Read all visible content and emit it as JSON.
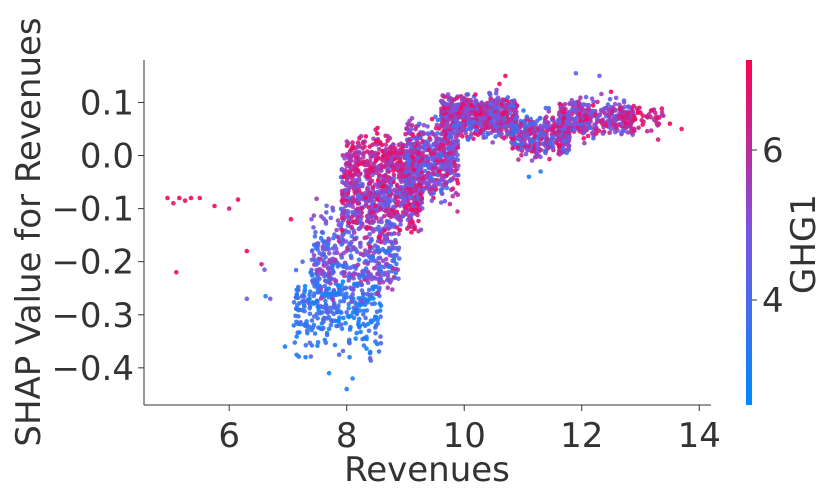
{
  "chart_data": {
    "type": "scatter",
    "title": "",
    "xlabel": "Revenues",
    "ylabel": "SHAP Value for Revenues",
    "xlim": [
      4.55,
      14.2
    ],
    "ylim": [
      -0.47,
      0.18
    ],
    "xticks": [
      {
        "value": 6,
        "label": "6"
      },
      {
        "value": 8,
        "label": "8"
      },
      {
        "value": 10,
        "label": "10"
      },
      {
        "value": 12,
        "label": "12"
      },
      {
        "value": 14,
        "label": "14"
      }
    ],
    "yticks": [
      {
        "value": 0.1,
        "label": "0.1"
      },
      {
        "value": 0.0,
        "label": "0.0"
      },
      {
        "value": -0.1,
        "label": "−0.1"
      },
      {
        "value": -0.2,
        "label": "−0.2"
      },
      {
        "value": -0.3,
        "label": "−0.3"
      },
      {
        "value": -0.4,
        "label": "−0.4"
      }
    ],
    "grid": false,
    "colorbar": {
      "label": "GHG1",
      "range": [
        2.6,
        7.2
      ],
      "ticks": [
        {
          "value": 4,
          "label": "4"
        },
        {
          "value": 6,
          "label": "6"
        }
      ],
      "colors": [
        "#008afb",
        "#7b54e0",
        "#ff0052"
      ]
    },
    "series": [
      {
        "description_note": "",
        "points": [
          {
            "x": 4.95,
            "y": -0.08,
            "c": 7.0
          },
          {
            "x": 5.05,
            "y": -0.09,
            "c": 6.9
          },
          {
            "x": 5.15,
            "y": -0.08,
            "c": 7.1
          },
          {
            "x": 5.25,
            "y": -0.085,
            "c": 6.8
          },
          {
            "x": 5.35,
            "y": -0.08,
            "c": 7.0
          },
          {
            "x": 5.5,
            "y": -0.08,
            "c": 7.1
          },
          {
            "x": 5.75,
            "y": -0.095,
            "c": 6.9
          },
          {
            "x": 5.1,
            "y": -0.22,
            "c": 6.8
          },
          {
            "x": 6.15,
            "y": -0.083,
            "c": 7.0
          },
          {
            "x": 6.0,
            "y": -0.1,
            "c": 6.3
          },
          {
            "x": 6.3,
            "y": -0.18,
            "c": 7.0
          },
          {
            "x": 6.3,
            "y": -0.27,
            "c": 4.6
          },
          {
            "x": 6.55,
            "y": -0.205,
            "c": 6.4
          },
          {
            "x": 6.6,
            "y": -0.215,
            "c": 4.8
          },
          {
            "x": 6.62,
            "y": -0.265,
            "c": 2.9
          },
          {
            "x": 6.7,
            "y": -0.27,
            "c": 5.0
          },
          {
            "x": 7.05,
            "y": -0.12,
            "c": 7.0
          },
          {
            "x": 6.95,
            "y": -0.36,
            "c": 2.9
          },
          {
            "x": 7.1,
            "y": -0.32,
            "c": 3.1
          },
          {
            "x": 7.3,
            "y": -0.38,
            "c": 3.0
          },
          {
            "x": 7.25,
            "y": -0.2,
            "c": 4.2
          },
          {
            "x": 7.4,
            "y": -0.12,
            "c": 4.8
          },
          {
            "x": 7.5,
            "y": -0.24,
            "c": 3.2
          },
          {
            "x": 7.6,
            "y": -0.22,
            "c": 5.2
          },
          {
            "x": 7.7,
            "y": -0.41,
            "c": 2.9
          },
          {
            "x": 7.8,
            "y": -0.17,
            "c": 4.1
          },
          {
            "x": 7.95,
            "y": -0.04,
            "c": 7.1
          },
          {
            "x": 8.0,
            "y": -0.44,
            "c": 3.0
          },
          {
            "x": 8.05,
            "y": -0.38,
            "c": 3.1
          },
          {
            "x": 8.1,
            "y": -0.42,
            "c": 3.0
          },
          {
            "x": 8.4,
            "y": -0.37,
            "c": 3.0
          },
          {
            "x": 8.5,
            "y": -0.01,
            "c": 6.8
          },
          {
            "x": 8.6,
            "y": 0.02,
            "c": 7.0
          },
          {
            "x": 10.6,
            "y": 0.135,
            "c": 7.0
          },
          {
            "x": 10.7,
            "y": 0.15,
            "c": 6.9
          },
          {
            "x": 11.9,
            "y": 0.155,
            "c": 4.2
          },
          {
            "x": 12.3,
            "y": 0.15,
            "c": 4.5
          },
          {
            "x": 12.5,
            "y": 0.12,
            "c": 6.8
          },
          {
            "x": 12.9,
            "y": 0.07,
            "c": 7.0
          },
          {
            "x": 13.2,
            "y": 0.085,
            "c": 6.6
          },
          {
            "x": 13.3,
            "y": 0.03,
            "c": 6.5
          },
          {
            "x": 13.5,
            "y": 0.06,
            "c": 7.0
          },
          {
            "x": 13.7,
            "y": 0.05,
            "c": 6.9
          },
          {
            "x": 11.1,
            "y": -0.04,
            "c": 3.0
          },
          {
            "x": 11.3,
            "y": -0.03,
            "c": 3.1
          }
        ]
      }
    ],
    "clusters": [
      {
        "xMin": 7.1,
        "xMax": 8.6,
        "yLo": -0.4,
        "yHi": -0.18,
        "cLo": 2.6,
        "cHi": 4.4,
        "n": 330
      },
      {
        "xMin": 7.4,
        "xMax": 8.9,
        "yLo": -0.3,
        "yHi": -0.07,
        "cLo": 3.3,
        "cHi": 6.0,
        "n": 380
      },
      {
        "xMin": 7.9,
        "xMax": 9.3,
        "yLo": -0.18,
        "yHi": 0.02,
        "cLo": 4.0,
        "cHi": 7.1,
        "n": 620
      },
      {
        "xMin": 8.0,
        "xMax": 9.3,
        "yLo": -0.07,
        "yHi": 0.06,
        "cLo": 5.3,
        "cHi": 7.1,
        "n": 330
      },
      {
        "xMin": 9.0,
        "xMax": 9.9,
        "yLo": -0.12,
        "yHi": 0.1,
        "cLo": 3.8,
        "cHi": 7.0,
        "n": 520
      },
      {
        "xMin": 9.6,
        "xMax": 10.9,
        "yLo": 0.02,
        "yHi": 0.13,
        "cLo": 3.6,
        "cHi": 7.1,
        "n": 780
      },
      {
        "xMin": 10.8,
        "xMax": 11.8,
        "yLo": -0.02,
        "yHi": 0.1,
        "cLo": 3.2,
        "cHi": 7.0,
        "n": 380
      },
      {
        "xMin": 11.6,
        "xMax": 12.9,
        "yLo": 0.02,
        "yHi": 0.12,
        "cLo": 4.0,
        "cHi": 7.1,
        "n": 360
      },
      {
        "xMin": 12.6,
        "xMax": 13.4,
        "yLo": 0.04,
        "yHi": 0.1,
        "cLo": 5.5,
        "cHi": 7.1,
        "n": 60
      }
    ]
  }
}
